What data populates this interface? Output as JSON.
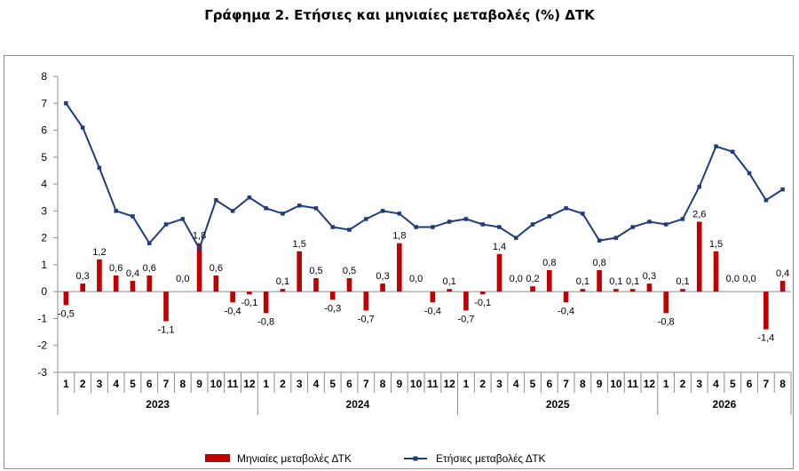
{
  "title": "Γράφημα 2. Ετήσιες και μηνιαίες μεταβολές (%) ΔΤΚ",
  "chart_data": {
    "type": "bar+line",
    "title": "Γράφημα 2. Ετήσιες και μηνιαίες μεταβολές (%) ΔΤΚ",
    "ylim": [
      -3,
      8
    ],
    "yticks": [
      -3,
      -2,
      -1,
      0,
      1,
      2,
      3,
      4,
      5,
      6,
      7,
      8
    ],
    "grid": false,
    "legend_position": "bottom",
    "years": [
      {
        "label": "2023",
        "months": 12
      },
      {
        "label": "2024",
        "months": 12
      },
      {
        "label": "2025",
        "months": 12
      },
      {
        "label": "2026",
        "months": 8
      }
    ],
    "categories": [
      "1",
      "2",
      "3",
      "4",
      "5",
      "6",
      "7",
      "8",
      "9",
      "10",
      "11",
      "12",
      "1",
      "2",
      "3",
      "4",
      "5",
      "6",
      "7",
      "8",
      "9",
      "10",
      "11",
      "12",
      "1",
      "2",
      "3",
      "4",
      "5",
      "6",
      "7",
      "8",
      "9",
      "10",
      "11",
      "12",
      "1",
      "2",
      "3",
      "4",
      "5",
      "6",
      "7",
      "8"
    ],
    "series": [
      {
        "name": "Μηνιαίες μεταβολές ΔΤΚ",
        "kind": "bar",
        "color": "#c00000",
        "values": [
          -0.5,
          0.3,
          1.2,
          0.6,
          0.4,
          0.6,
          -1.1,
          0.0,
          1.8,
          0.6,
          -0.4,
          -0.1,
          -0.8,
          0.1,
          1.5,
          0.5,
          -0.3,
          0.5,
          -0.7,
          0.3,
          1.8,
          0.0,
          -0.4,
          0.1,
          -0.7,
          -0.1,
          1.4,
          0.0,
          0.2,
          0.8,
          -0.4,
          0.1,
          0.8,
          0.1,
          0.1,
          0.3,
          -0.8,
          0.1,
          2.6,
          1.5,
          0.0,
          0.0,
          -1.4,
          0.4
        ],
        "labels": [
          "-0,5",
          "0,3",
          "1,2",
          "0,6",
          "0,4",
          "0,6",
          "-1,1",
          "0,0",
          "1,8",
          "0,6",
          "-0,4",
          "-0,1",
          "-0,8",
          "0,1",
          "1,5",
          "0,5",
          "-0,3",
          "0,5",
          "-0,7",
          "0,3",
          "1,8",
          "0,0",
          "-0,4",
          "0,1",
          "-0,7",
          "-0,1",
          "1,4",
          "0,0",
          "0,2",
          "0,8",
          "-0,4",
          "0,1",
          "0,8",
          "0,1",
          "0,1",
          "0,3",
          "-0,8",
          "0,1",
          "2,6",
          "1,5",
          "0,0",
          "0,0",
          "-1,4",
          "0,4"
        ]
      },
      {
        "name": "Ετήσιες μεταβολές ΔΤΚ",
        "kind": "line",
        "color": "#1f3d7a",
        "values": [
          7.0,
          6.1,
          4.6,
          3.0,
          2.8,
          1.8,
          2.5,
          2.7,
          1.6,
          3.4,
          3.0,
          3.5,
          3.1,
          2.9,
          3.2,
          3.1,
          2.4,
          2.3,
          2.7,
          3.0,
          2.9,
          2.4,
          2.4,
          2.6,
          2.7,
          2.5,
          2.4,
          2.0,
          2.5,
          2.8,
          3.1,
          2.9,
          1.9,
          2.0,
          2.4,
          2.6,
          2.5,
          2.7,
          3.9,
          5.4,
          5.2,
          4.4,
          3.4,
          3.8
        ]
      }
    ]
  }
}
